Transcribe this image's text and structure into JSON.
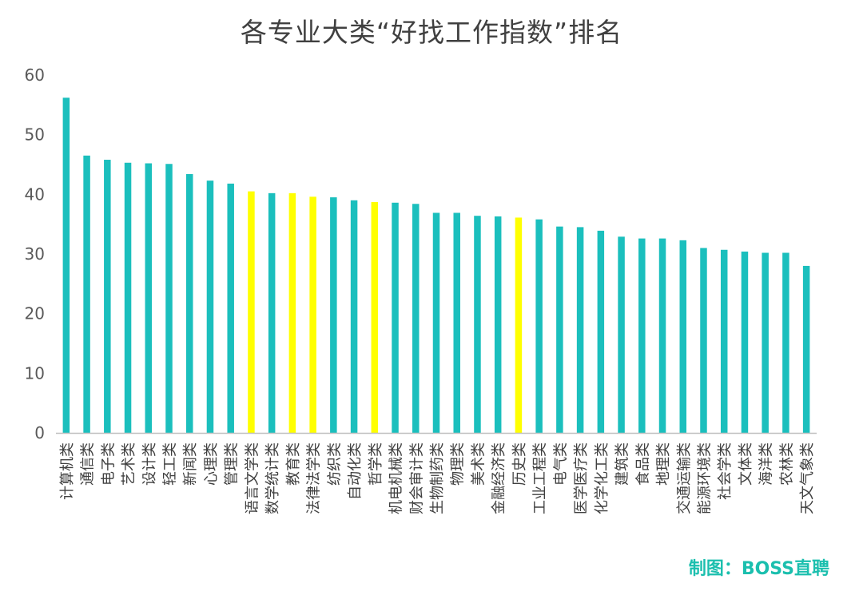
{
  "title": "各专业大类“好找工作指数”排名",
  "credit": "制图：BOSS直聘",
  "colors": {
    "default": "#1bbfbd",
    "highlight": "#ffff00",
    "axis": "#bfbfbf",
    "tick_text": "#595959",
    "label_text": "#404040"
  },
  "chart_data": {
    "type": "bar",
    "ylim": [
      0,
      60
    ],
    "yticks": [
      0,
      10,
      20,
      30,
      40,
      50,
      60
    ],
    "grid": false,
    "categories": [
      "计算机类",
      "通信类",
      "电子类",
      "艺术类",
      "设计类",
      "轻工类",
      "新闻类",
      "心理类",
      "管理类",
      "语言文学类",
      "数学统计类",
      "教育类",
      "法律法学类",
      "纺织类",
      "自动化类",
      "哲学类",
      "机电机械类",
      "财会审计类",
      "生物制药类",
      "物理类",
      "美术类",
      "金融经济类",
      "历史类",
      "工业工程类",
      "电气类",
      "医学医疗类",
      "化学化工类",
      "建筑类",
      "食品类",
      "地理类",
      "交通运输类",
      "能源环境类",
      "社会学类",
      "文体类",
      "海洋类",
      "农林类",
      "天文气象类"
    ],
    "values": [
      56.2,
      46.5,
      45.8,
      45.3,
      45.2,
      45.1,
      43.4,
      42.3,
      41.8,
      40.5,
      40.2,
      40.2,
      39.6,
      39.5,
      39.0,
      38.7,
      38.6,
      38.4,
      36.9,
      36.9,
      36.4,
      36.3,
      36.1,
      35.8,
      34.6,
      34.5,
      33.9,
      32.9,
      32.6,
      32.6,
      32.3,
      31.0,
      30.7,
      30.4,
      30.2,
      30.2,
      28.0
    ],
    "highlighted": [
      "语言文学类",
      "教育类",
      "法律法学类",
      "哲学类",
      "历史类"
    ]
  }
}
